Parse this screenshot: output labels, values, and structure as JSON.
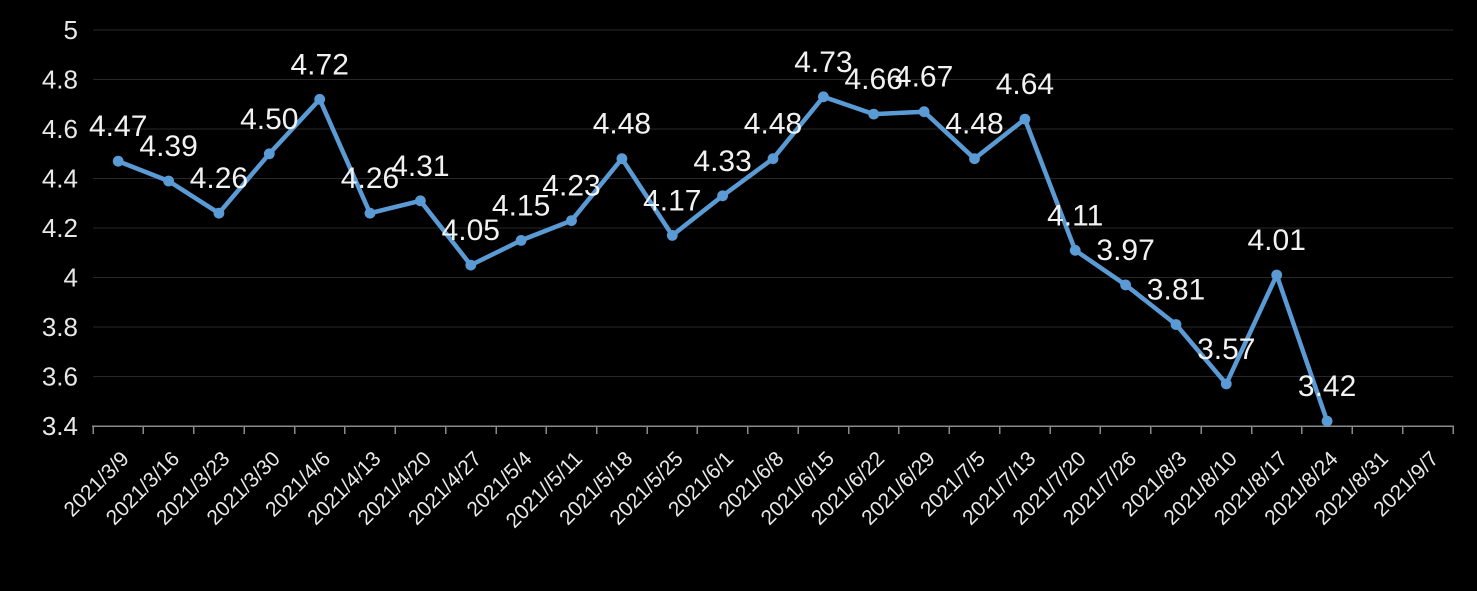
{
  "chart_data": {
    "type": "line",
    "title": "",
    "xlabel": "",
    "ylabel": "",
    "legend": "none",
    "grid": true,
    "data_labels_shown": true,
    "label_format": "0.00",
    "categories": [
      "2021/3/9",
      "2021/3/16",
      "2021/3/23",
      "2021/3/30",
      "2021/4/6",
      "2021/4/13",
      "2021/4/20",
      "2021/4/27",
      "2021/5/4",
      "2021//5/11",
      "2021/5/18",
      "2021/5/25",
      "2021/6/1",
      "2021/6/8",
      "2021/6/15",
      "2021/6/22",
      "2021/6/29",
      "2021/7/5",
      "2021/7/13",
      "2021/7/20",
      "2021/7/26",
      "2021/8/3",
      "2021/8/10",
      "2021/8/17",
      "2021/8/24",
      "2021/8/31",
      "2021/9/7"
    ],
    "series": [
      {
        "name": "series-1",
        "values": [
          4.47,
          4.39,
          4.26,
          4.5,
          4.72,
          4.26,
          4.31,
          4.05,
          4.15,
          4.23,
          4.48,
          4.17,
          4.33,
          4.48,
          4.73,
          4.66,
          4.67,
          4.48,
          4.64,
          4.11,
          3.97,
          3.81,
          3.57,
          4.01,
          3.42,
          null,
          null
        ],
        "data_labels": [
          "4.47",
          "4.39",
          "4.26",
          "4.50",
          "4.72",
          "4.26",
          "4.31",
          "4.05",
          "4.15",
          "4.23",
          "4.48",
          "4.17",
          "4.33",
          "4.48",
          "4.73",
          "4.66",
          "4.67",
          "4.48",
          "4.64",
          "4.11",
          "3.97",
          "3.81",
          "3.57",
          "4.01",
          "3.42"
        ]
      }
    ],
    "ylim": [
      3.4,
      5.0
    ],
    "ytick_step": 0.2,
    "yticks": [
      5,
      4.8,
      4.6,
      4.4,
      4.2,
      4,
      3.8,
      3.6,
      3.4
    ],
    "ytick_labels": [
      "5",
      "4.8",
      "4.6",
      "4.4",
      "4.2",
      "4",
      "3.8",
      "3.6",
      "3.4"
    ],
    "colors": {
      "background": "#000000",
      "series_line": "#5B9BD5",
      "marker": "#5B9BD5",
      "gridline": "#272727",
      "axis_line": "#8A8A8A",
      "tick_mark": "#8A8A8A",
      "axis_tick_label": "#E8E8E8",
      "data_label": "#F2F2F2"
    }
  }
}
